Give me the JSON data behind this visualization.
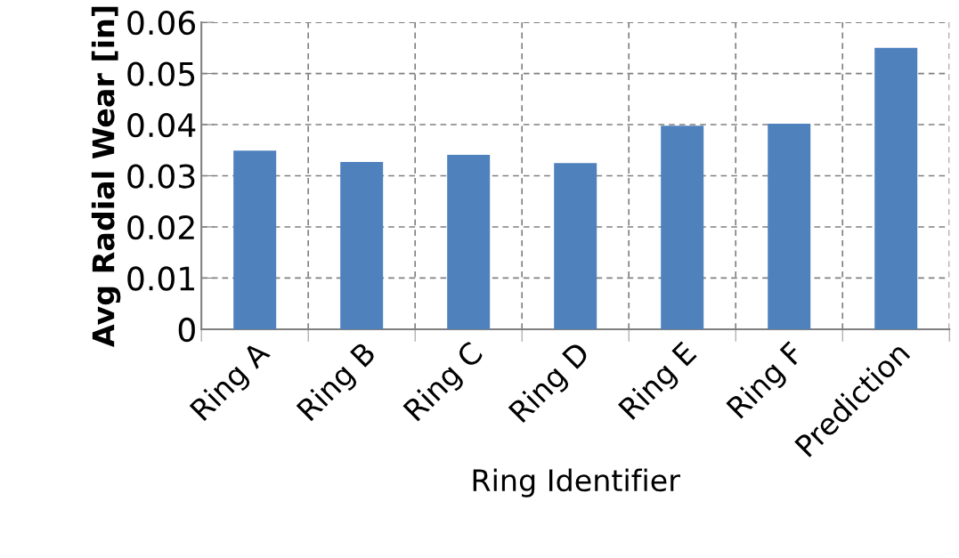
{
  "chart_data": {
    "type": "bar",
    "xlabel": "Ring Identifier",
    "ylabel": "Avg Radial Wear [in]",
    "categories": [
      "Ring A",
      "Ring B",
      "Ring C",
      "Ring D",
      "Ring E",
      "Ring F",
      "Prediction"
    ],
    "values": [
      0.0349,
      0.0327,
      0.0341,
      0.0325,
      0.0398,
      0.0402,
      0.055
    ],
    "color": "#4f81bd",
    "ylim": [
      0,
      0.06
    ],
    "yticks": [
      {
        "value": 0,
        "label": "0"
      },
      0.01,
      0.02,
      0.03,
      0.04,
      0.05,
      0.06
    ],
    "grid": true
  }
}
